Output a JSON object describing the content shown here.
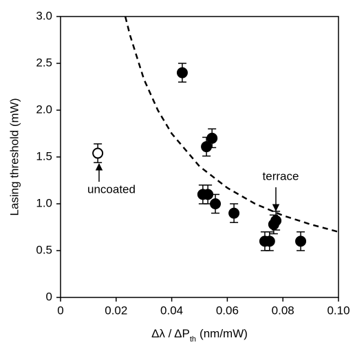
{
  "chart_data": {
    "type": "scatter",
    "xlabel": {
      "main": "Δλ / ΔP",
      "sub": "th",
      "unit": "(nm/mW)"
    },
    "ylabel": "Lasing threshold (mW)",
    "xlim": [
      0,
      0.1
    ],
    "ylim": [
      0,
      3
    ],
    "xticks": [
      0,
      0.02,
      0.04,
      0.06,
      0.08,
      {
        "value": 0.1,
        "label": "0.10"
      }
    ],
    "yticks": [
      0,
      0.5,
      {
        "value": 1,
        "label": "1.0"
      },
      1.5,
      {
        "value": 2,
        "label": "2.0"
      },
      2.5,
      {
        "value": 3,
        "label": "3.0"
      }
    ],
    "series": [
      {
        "marker": "filled",
        "color": "#000000",
        "x": [
          0.0438,
          0.0525,
          0.0545,
          0.0512,
          0.053,
          0.0557,
          0.0624,
          0.0735,
          0.0752,
          0.0767,
          0.0775,
          0.0864
        ],
        "values": [
          2.4,
          1.61,
          1.7,
          1.1,
          1.1,
          1.0,
          0.9,
          0.6,
          0.6,
          0.78,
          0.82,
          0.6
        ],
        "errors": [
          0.1,
          0.1,
          0.1,
          0.1,
          0.1,
          0.1,
          0.1,
          0.1,
          0.1,
          0.1,
          0.1,
          0.1
        ]
      },
      {
        "marker": "open",
        "color": "#000000",
        "x": [
          0.0134
        ],
        "values": [
          1.54
        ],
        "errors": [
          0.1
        ]
      }
    ],
    "fit": {
      "style": "dashed",
      "color": "#000000",
      "x": [
        0.0233,
        0.025,
        0.03,
        0.035,
        0.04,
        0.05,
        0.06,
        0.07,
        0.08,
        0.09,
        0.1
      ],
      "values": [
        3.0,
        2.8,
        2.33,
        2.0,
        1.75,
        1.4,
        1.17,
        1.0,
        0.875,
        0.78,
        0.7
      ]
    },
    "annotations": [
      "uncoated",
      "terrace"
    ]
  }
}
